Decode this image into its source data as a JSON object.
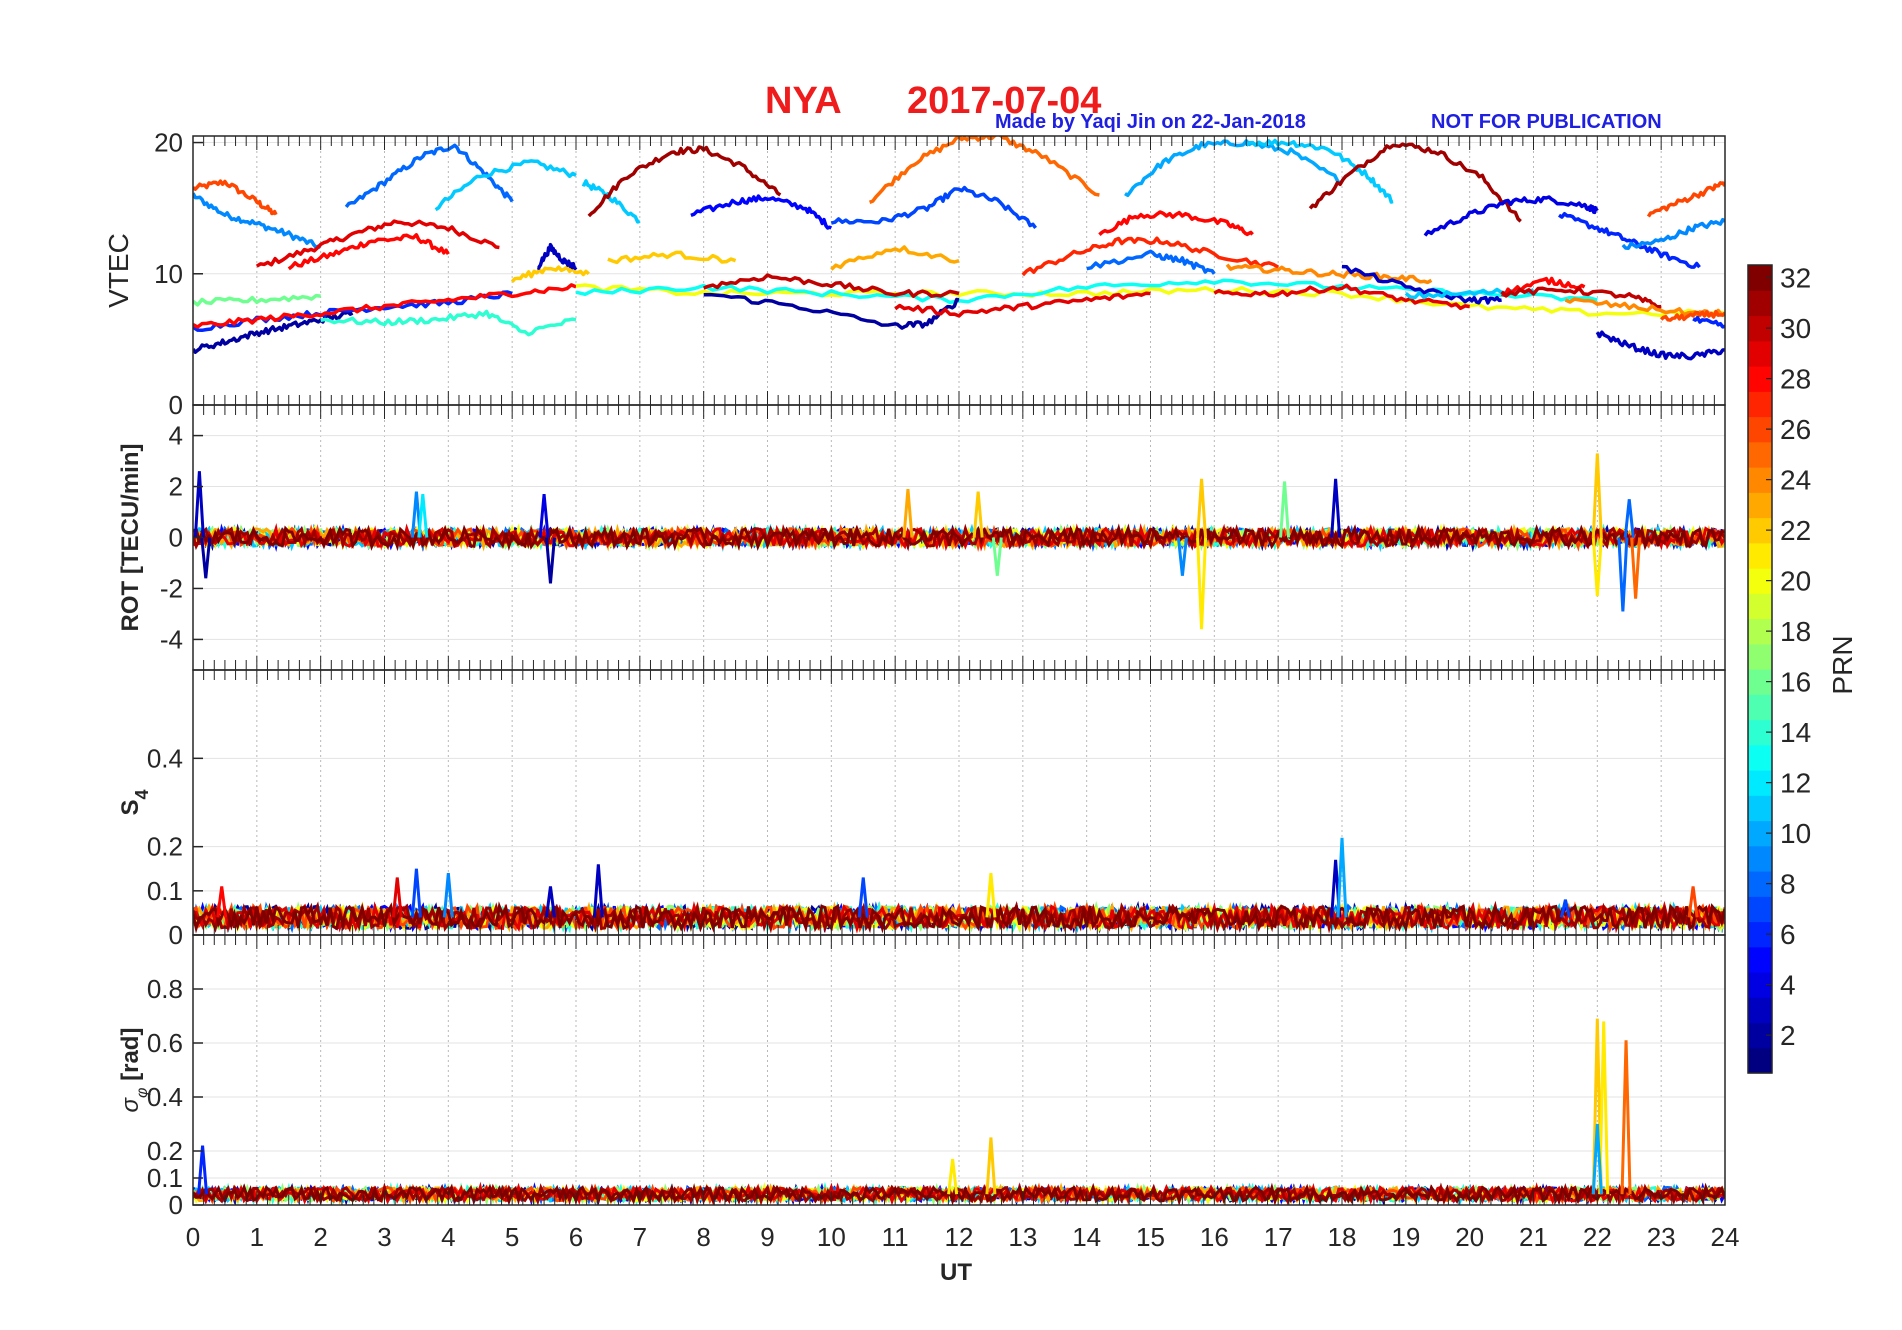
{
  "title": {
    "station": "NYA",
    "date": "2017-07-04",
    "credit": "Made by Yaqi Jin on 22-Jan-2018",
    "notice": "NOT FOR PUBLICATION",
    "title_color": "#ee1c1c",
    "credit_color": "#1f1fe0"
  },
  "xaxis": {
    "label": "UT",
    "range": [
      0,
      24
    ],
    "ticks": [
      "0",
      "1",
      "2",
      "3",
      "4",
      "5",
      "6",
      "7",
      "8",
      "9",
      "10",
      "11",
      "12",
      "13",
      "14",
      "15",
      "16",
      "17",
      "18",
      "19",
      "20",
      "21",
      "22",
      "23",
      "24"
    ]
  },
  "colorbar": {
    "label": "PRN",
    "range": [
      1,
      32
    ],
    "ticks": [
      "2",
      "4",
      "6",
      "8",
      "10",
      "12",
      "14",
      "16",
      "18",
      "20",
      "22",
      "24",
      "26",
      "28",
      "30",
      "32"
    ],
    "colormap": "jet"
  },
  "chart_data": [
    {
      "type": "line",
      "panel": "vtec",
      "ylabel": "VTEC",
      "ylim": [
        0,
        20.5
      ],
      "yticks": [
        "0",
        "10",
        "20"
      ],
      "grid": true,
      "series": [
        {
          "prn": 26,
          "x": [
            0,
            0.5,
            1.0,
            1.3
          ],
          "y": [
            16.5,
            17,
            15.5,
            14.5
          ]
        },
        {
          "prn": 9,
          "x": [
            0,
            0.5,
            1,
            1.5,
            2.0
          ],
          "y": [
            16,
            14.5,
            13.8,
            13,
            12
          ]
        },
        {
          "prn": 29,
          "x": [
            1.0,
            1.8,
            2.5,
            3.2,
            4.0,
            4.8
          ],
          "y": [
            10.5,
            11.8,
            13,
            14,
            13.5,
            12
          ]
        },
        {
          "prn": 28,
          "x": [
            1.5,
            2.2,
            2.8,
            3.5,
            4.0
          ],
          "y": [
            10.5,
            11.5,
            12.5,
            12.8,
            11.5
          ]
        },
        {
          "prn": 8,
          "x": [
            2.4,
            3.0,
            3.6,
            4.1,
            4.6,
            5.0
          ],
          "y": [
            15,
            17,
            19,
            19.8,
            17.5,
            15.5
          ]
        },
        {
          "prn": 11,
          "x": [
            3.8,
            4.5,
            5.3,
            6.0
          ],
          "y": [
            15,
            17.5,
            18.5,
            17.5
          ]
        },
        {
          "prn": 11,
          "x": [
            6.1,
            6.5,
            7.0
          ],
          "y": [
            17,
            16,
            14
          ]
        },
        {
          "prn": 31,
          "x": [
            6.2,
            6.8,
            7.5,
            8.0,
            8.6,
            9.2
          ],
          "y": [
            14.5,
            17.5,
            19.3,
            19.5,
            18.2,
            16.0
          ]
        },
        {
          "prn": 5,
          "x": [
            7.8,
            8.5,
            9.0,
            9.6,
            10.0
          ],
          "y": [
            14.5,
            15.5,
            15.8,
            15,
            13.5
          ]
        },
        {
          "prn": 25,
          "x": [
            10.6,
            11.3,
            12.0,
            12.6,
            13.3,
            14.2
          ],
          "y": [
            15.5,
            18.5,
            20.3,
            20.5,
            19,
            16
          ]
        },
        {
          "prn": 7,
          "x": [
            10.0,
            10.8,
            11.5,
            12.0,
            12.6,
            13.2
          ],
          "y": [
            14,
            14,
            15,
            16.5,
            15.5,
            13.5
          ]
        },
        {
          "prn": 10,
          "x": [
            14.6,
            15.2,
            15.8,
            16.5,
            17.2,
            18.0
          ],
          "y": [
            16,
            18.5,
            19.8,
            20,
            19.3,
            17
          ]
        },
        {
          "prn": 11,
          "x": [
            16.5,
            17.2,
            17.8,
            18.4,
            18.8
          ],
          "y": [
            20,
            20,
            19.5,
            17.5,
            15.5
          ]
        },
        {
          "prn": 31,
          "x": [
            17.5,
            18.1,
            18.8,
            19.5,
            20.2,
            20.8
          ],
          "y": [
            15,
            17.5,
            20,
            19.3,
            17.3,
            14
          ]
        },
        {
          "prn": 4,
          "x": [
            19.3,
            20.0,
            20.6,
            21.2,
            21.8,
            22.0
          ],
          "y": [
            13,
            14.5,
            15.5,
            15.7,
            15.2,
            14.8
          ]
        },
        {
          "prn": 6,
          "x": [
            21.4,
            22.0,
            22.5,
            23.0,
            23.6
          ],
          "y": [
            14.5,
            13.5,
            12.5,
            11.5,
            10.5
          ]
        },
        {
          "prn": 26,
          "x": [
            22.8,
            23.3,
            23.8,
            24
          ],
          "y": [
            14.5,
            15.5,
            16.5,
            17
          ]
        },
        {
          "prn": 9,
          "x": [
            22.4,
            23.0,
            23.5,
            24
          ],
          "y": [
            12,
            12.5,
            13.5,
            14
          ]
        },
        {
          "prn": 28,
          "x": [
            14.2,
            14.8,
            15.5,
            16.2,
            16.6
          ],
          "y": [
            13,
            14.5,
            14.5,
            13.8,
            13
          ]
        },
        {
          "prn": 27,
          "x": [
            13.0,
            13.8,
            14.5,
            15.2,
            16.0,
            17.0
          ],
          "y": [
            10,
            11.5,
            12.5,
            12.5,
            11.5,
            10.5
          ]
        },
        {
          "prn": 2,
          "x": [
            0,
            0.5,
            1.0,
            1.5,
            2.0,
            2.5
          ],
          "y": [
            4.2,
            4.8,
            5.5,
            6,
            6.5,
            7
          ]
        },
        {
          "prn": 6,
          "x": [
            0,
            1.0,
            2.0,
            3.0,
            4.0,
            5.0
          ],
          "y": [
            5.8,
            6.5,
            7,
            7.5,
            7.8,
            8.5
          ]
        },
        {
          "prn": 16,
          "x": [
            0,
            1.0,
            2.0
          ],
          "y": [
            7.8,
            8,
            8.3
          ]
        },
        {
          "prn": 14,
          "x": [
            2.0,
            3.0,
            3.8,
            4.6,
            5.2,
            6.0
          ],
          "y": [
            6.5,
            6.3,
            6.5,
            7,
            5.5,
            6.5
          ]
        },
        {
          "prn": 28,
          "x": [
            0,
            1.0,
            2.0,
            3.0,
            4.0,
            5.0,
            6.0
          ],
          "y": [
            6,
            6.5,
            7,
            7.5,
            8,
            8.5,
            9
          ]
        },
        {
          "prn": 22,
          "x": [
            5.0,
            5.6,
            6.2
          ],
          "y": [
            9.5,
            10.5,
            10
          ]
        },
        {
          "prn": 3,
          "x": [
            5.4,
            5.6,
            5.8,
            6.0
          ],
          "y": [
            10.5,
            12,
            11,
            10.5
          ]
        },
        {
          "prn": 22,
          "x": [
            6.5,
            7.5,
            8.5
          ],
          "y": [
            11,
            11.5,
            11
          ]
        },
        {
          "prn": 20,
          "x": [
            6.0,
            8.0,
            10.0,
            12.0,
            14.0,
            16.0,
            18.0,
            20.0,
            22.0,
            24.0
          ],
          "y": [
            9,
            8.5,
            8.5,
            8.5,
            8.5,
            8.8,
            8.5,
            7.5,
            7,
            7
          ]
        },
        {
          "prn": 13,
          "x": [
            6.0,
            8.0,
            10.0,
            12.0,
            14.0,
            16.0,
            18.0,
            20.0,
            22.0
          ],
          "y": [
            8.5,
            9,
            8.5,
            8,
            9,
            9.5,
            9,
            8.5,
            8
          ]
        },
        {
          "prn": 2,
          "x": [
            8.0,
            9.5,
            11.0,
            11.5,
            12.0
          ],
          "y": [
            8.5,
            7.5,
            6,
            6.2,
            8
          ]
        },
        {
          "prn": 30,
          "x": [
            8.0,
            9.0,
            10.0,
            11.0,
            12.0
          ],
          "y": [
            9,
            9.8,
            9.2,
            8.5,
            8.5
          ]
        },
        {
          "prn": 29,
          "x": [
            11.0,
            12.0,
            13.0,
            14.0,
            15.0
          ],
          "y": [
            7.5,
            7,
            7.5,
            8,
            8.5
          ]
        },
        {
          "prn": 23,
          "x": [
            10.0,
            11.0,
            12.0
          ],
          "y": [
            10.5,
            12,
            11
          ]
        },
        {
          "prn": 8,
          "x": [
            14.0,
            15.0,
            15.5,
            16.0
          ],
          "y": [
            10.5,
            11.5,
            11,
            10
          ]
        },
        {
          "prn": 29,
          "x": [
            16.0,
            17.0,
            18.0,
            19.0,
            20.0
          ],
          "y": [
            8.5,
            8.5,
            9,
            8,
            7.5
          ]
        },
        {
          "prn": 24,
          "x": [
            16.2,
            17.0,
            17.8,
            18.6,
            19.4
          ],
          "y": [
            10.5,
            10.3,
            10,
            9.8,
            9.5
          ]
        },
        {
          "prn": 3,
          "x": [
            18.0,
            19.0,
            20.0,
            20.5
          ],
          "y": [
            10.5,
            9,
            8,
            8
          ]
        },
        {
          "prn": 11,
          "x": [
            19.0,
            20.0,
            21.0
          ],
          "y": [
            8.3,
            8.5,
            8.8
          ]
        },
        {
          "prn": 28,
          "x": [
            20.5,
            21.2,
            21.8
          ],
          "y": [
            8.5,
            9.5,
            9
          ]
        },
        {
          "prn": 30,
          "x": [
            20.5,
            21.5,
            22.5,
            23.0
          ],
          "y": [
            8.5,
            8.8,
            8.3,
            7.5
          ]
        },
        {
          "prn": 3,
          "x": [
            22.0,
            22.5,
            23.0,
            23.5,
            24.0
          ],
          "y": [
            5.5,
            4.5,
            3.8,
            3.7,
            4.2
          ]
        },
        {
          "prn": 24,
          "x": [
            21.5,
            22.5,
            23.5,
            24.0
          ],
          "y": [
            8,
            7.5,
            7,
            7
          ]
        },
        {
          "prn": 26,
          "x": [
            23.0,
            23.5,
            24.0
          ],
          "y": [
            6.5,
            6.8,
            7
          ]
        },
        {
          "prn": 6,
          "x": [
            23.5,
            24.0
          ],
          "y": [
            6.5,
            6
          ]
        }
      ]
    },
    {
      "type": "line",
      "panel": "rot",
      "ylabel": "ROT [TECU/min]",
      "ylim": [
        -5.2,
        5.2
      ],
      "yticks": [
        "-4",
        "-2",
        "0",
        "2",
        "4"
      ],
      "grid": true,
      "spikes": [
        {
          "prn": 3,
          "x": 0.1,
          "y": 2.6
        },
        {
          "prn": 2,
          "x": 0.2,
          "y": -1.6
        },
        {
          "prn": 9,
          "x": 3.5,
          "y": 1.8
        },
        {
          "prn": 12,
          "x": 3.6,
          "y": 1.7
        },
        {
          "prn": 2,
          "x": 5.6,
          "y": -1.8
        },
        {
          "prn": 4,
          "x": 5.5,
          "y": 1.7
        },
        {
          "prn": 23,
          "x": 11.2,
          "y": 1.9
        },
        {
          "prn": 22,
          "x": 12.3,
          "y": 1.8
        },
        {
          "prn": 16,
          "x": 12.6,
          "y": -1.5
        },
        {
          "prn": 21,
          "x": 15.8,
          "y": -3.6
        },
        {
          "prn": 22,
          "x": 15.8,
          "y": 2.3
        },
        {
          "prn": 9,
          "x": 15.5,
          "y": -1.5
        },
        {
          "prn": 16,
          "x": 17.1,
          "y": 2.2
        },
        {
          "prn": 3,
          "x": 17.9,
          "y": 2.3
        },
        {
          "prn": 22,
          "x": 22.0,
          "y": 3.3
        },
        {
          "prn": 21,
          "x": 22.0,
          "y": -2.3
        },
        {
          "prn": 8,
          "x": 22.4,
          "y": -2.9
        },
        {
          "prn": 25,
          "x": 22.6,
          "y": -2.4
        },
        {
          "prn": 8,
          "x": 22.5,
          "y": 1.5
        }
      ]
    },
    {
      "type": "line",
      "panel": "s4",
      "ylabel": "S4",
      "ylim": [
        0,
        0.6
      ],
      "yticks": [
        "0",
        "0.1",
        "0.2",
        "0.4"
      ],
      "grid": true,
      "spikes": [
        {
          "prn": 28,
          "x": 0.45,
          "y": 0.11
        },
        {
          "prn": 29,
          "x": 3.2,
          "y": 0.13
        },
        {
          "prn": 7,
          "x": 3.5,
          "y": 0.15
        },
        {
          "prn": 9,
          "x": 4.0,
          "y": 0.14
        },
        {
          "prn": 3,
          "x": 5.6,
          "y": 0.11
        },
        {
          "prn": 3,
          "x": 6.35,
          "y": 0.16
        },
        {
          "prn": 7,
          "x": 10.5,
          "y": 0.13
        },
        {
          "prn": 21,
          "x": 12.5,
          "y": 0.14
        },
        {
          "prn": 3,
          "x": 17.9,
          "y": 0.17
        },
        {
          "prn": 10,
          "x": 18.0,
          "y": 0.22
        },
        {
          "prn": 26,
          "x": 23.5,
          "y": 0.11
        },
        {
          "prn": 7,
          "x": 21.5,
          "y": 0.08
        }
      ]
    },
    {
      "type": "line",
      "panel": "sigma_phi",
      "ylabel": "σφ [rad]",
      "ylim": [
        0,
        1.0
      ],
      "yticks": [
        "0",
        "0.1",
        "0.2",
        "0.4",
        "0.6",
        "0.8"
      ],
      "grid": true,
      "spikes": [
        {
          "prn": 6,
          "x": 0.15,
          "y": 0.22
        },
        {
          "prn": 22,
          "x": 12.5,
          "y": 0.25
        },
        {
          "prn": 21,
          "x": 11.9,
          "y": 0.17
        },
        {
          "prn": 22,
          "x": 22.0,
          "y": 0.69
        },
        {
          "prn": 21,
          "x": 22.1,
          "y": 0.68
        },
        {
          "prn": 25,
          "x": 22.45,
          "y": 0.61
        },
        {
          "prn": 10,
          "x": 22.0,
          "y": 0.3
        }
      ]
    }
  ]
}
